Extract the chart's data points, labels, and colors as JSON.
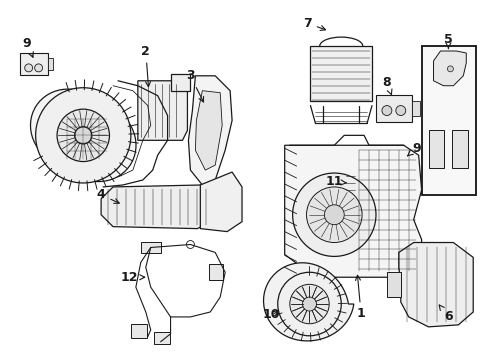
{
  "bg_color": "#ffffff",
  "line_color": "#1a1a1a",
  "fig_width": 4.89,
  "fig_height": 3.6,
  "dpi": 100,
  "label_fs": 9,
  "lw": 0.9
}
